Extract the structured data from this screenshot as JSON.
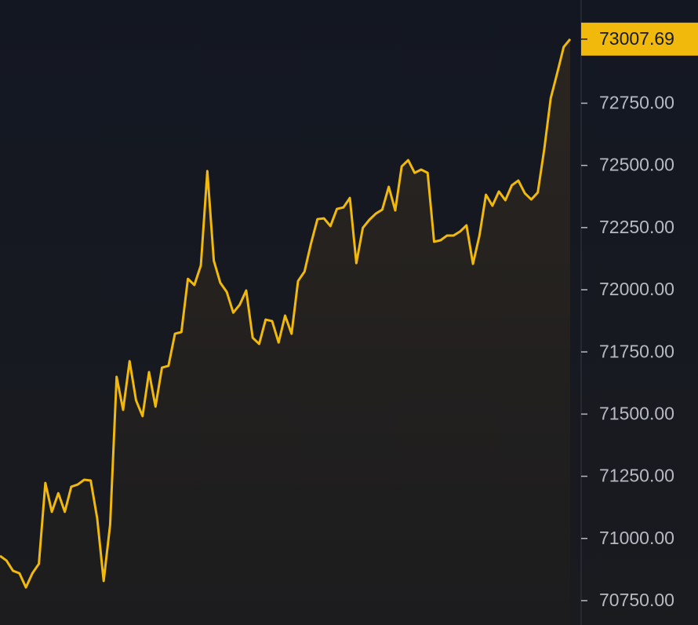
{
  "chart_data": {
    "type": "area",
    "values": [
      70930,
      70911,
      70870,
      70860,
      70803,
      70860,
      70898,
      71223,
      71107,
      71182,
      71107,
      71208,
      71217,
      71236,
      71233,
      71081,
      70829,
      71056,
      71650,
      71517,
      71713,
      71555,
      71492,
      71669,
      71530,
      71687,
      71694,
      71823,
      71830,
      72044,
      72019,
      72098,
      72477,
      72117,
      72028,
      71991,
      71908,
      71940,
      71997,
      71807,
      71782,
      71880,
      71874,
      71788,
      71896,
      71823,
      72035,
      72073,
      72186,
      72284,
      72287,
      72256,
      72325,
      72331,
      72369,
      72107,
      72249,
      72281,
      72306,
      72322,
      72414,
      72319,
      72496,
      72521,
      72470,
      72483,
      72470,
      72193,
      72199,
      72218,
      72218,
      72234,
      72259,
      72104,
      72218,
      72382,
      72338,
      72395,
      72360,
      72420,
      72439,
      72388,
      72363,
      72391,
      72565,
      72770,
      72871,
      72976,
      73007.69
    ],
    "color": "#f0b90b",
    "ylim": [
      70652,
      73165
    ],
    "yticks": [
      {
        "value": 70750,
        "label": "70750.00"
      },
      {
        "value": 71000,
        "label": "71000.00"
      },
      {
        "value": 71250,
        "label": "71250.00"
      },
      {
        "value": 71500,
        "label": "71500.00"
      },
      {
        "value": 71750,
        "label": "71750.00"
      },
      {
        "value": 72000,
        "label": "72000.00"
      },
      {
        "value": 72250,
        "label": "72250.00"
      },
      {
        "value": 72500,
        "label": "72500.00"
      },
      {
        "value": 72750,
        "label": "72750.00"
      }
    ],
    "grid": false
  }
}
